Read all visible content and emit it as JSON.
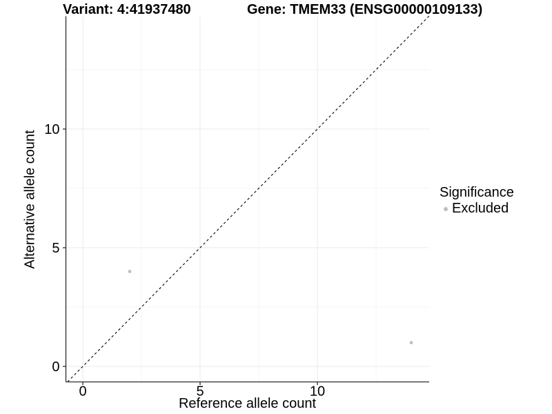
{
  "chart_data": {
    "type": "scatter",
    "titles": {
      "variant": "Variant: 4:41937480",
      "gene": "Gene: TMEM33 (ENSG00000109133)"
    },
    "xlabel": "Reference allele count",
    "ylabel": "Alternative allele count",
    "xlim": [
      -0.74,
      14.76
    ],
    "ylim": [
      -0.65,
      14.76
    ],
    "x_ticks": [
      0,
      5,
      10
    ],
    "y_ticks": [
      0,
      5,
      10
    ],
    "x_minor_gridlines": [
      2.5,
      7.5,
      12.5
    ],
    "y_minor_gridlines": [
      2.5,
      7.5,
      12.5
    ],
    "grid": true,
    "series": [
      {
        "name": "Excluded",
        "color": "#bebebe",
        "points": [
          [
            2,
            4
          ],
          [
            14,
            1
          ]
        ]
      }
    ],
    "identity_line": {
      "style": "dashed",
      "color": "#000000",
      "equation": "y = x"
    },
    "legend": {
      "title": "Significance",
      "position": "right",
      "entries": [
        {
          "label": "Excluded",
          "color": "#bebebe"
        }
      ]
    },
    "colors": {
      "background": "#ffffff",
      "axis_line": "#2b2b2b",
      "major_grid": "#e8e8e8",
      "minor_grid": "#f4f4f4",
      "tick_text": "#000000"
    }
  }
}
